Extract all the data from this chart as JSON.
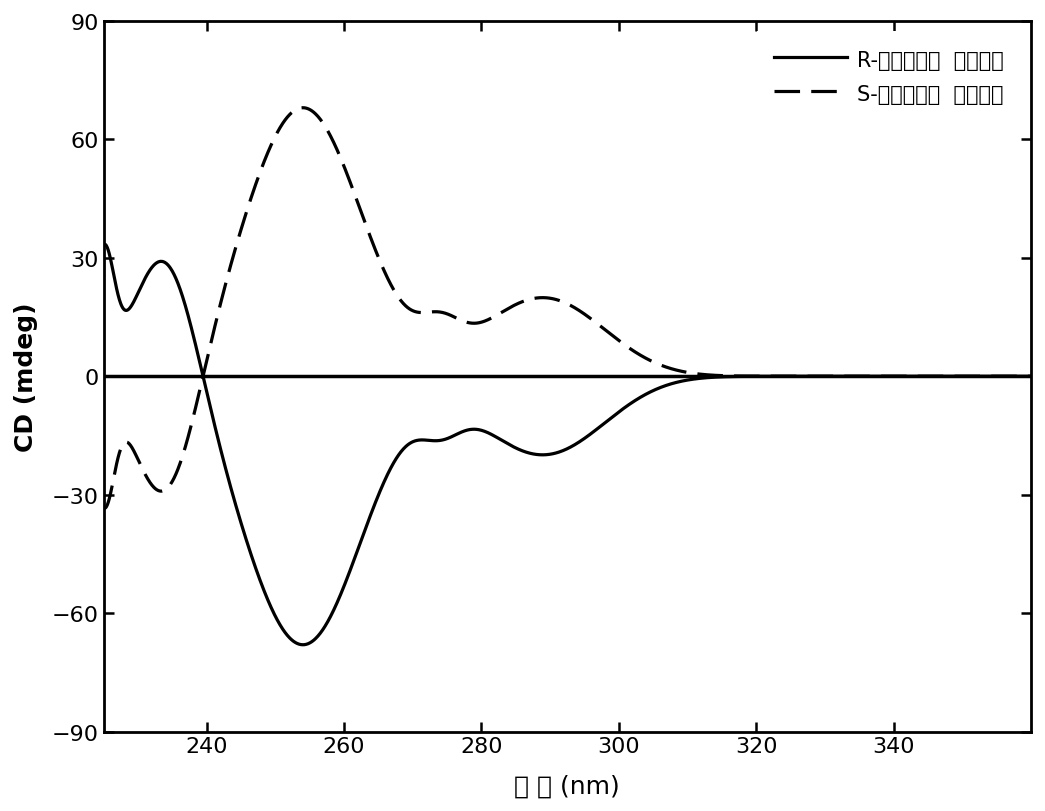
{
  "xlim": [
    225,
    360
  ],
  "ylim": [
    -90,
    90
  ],
  "xticks": [
    240,
    260,
    280,
    300,
    320,
    340
  ],
  "yticks": [
    -90,
    -60,
    -30,
    0,
    30,
    60,
    90
  ],
  "xlabel_cn": "波 长",
  "xlabel_en": " (nm)",
  "ylabel": "CD (mdeg)",
  "legend_R": "R-三蝶烯六氟  聚酰亚胺",
  "legend_S": "S-三蝶烯六氟  聚酰亚胺",
  "background_color": "#ffffff",
  "line_color": "#000000",
  "linewidth": 2.3,
  "axis_fontsize": 18,
  "tick_fontsize": 16,
  "legend_fontsize": 15
}
